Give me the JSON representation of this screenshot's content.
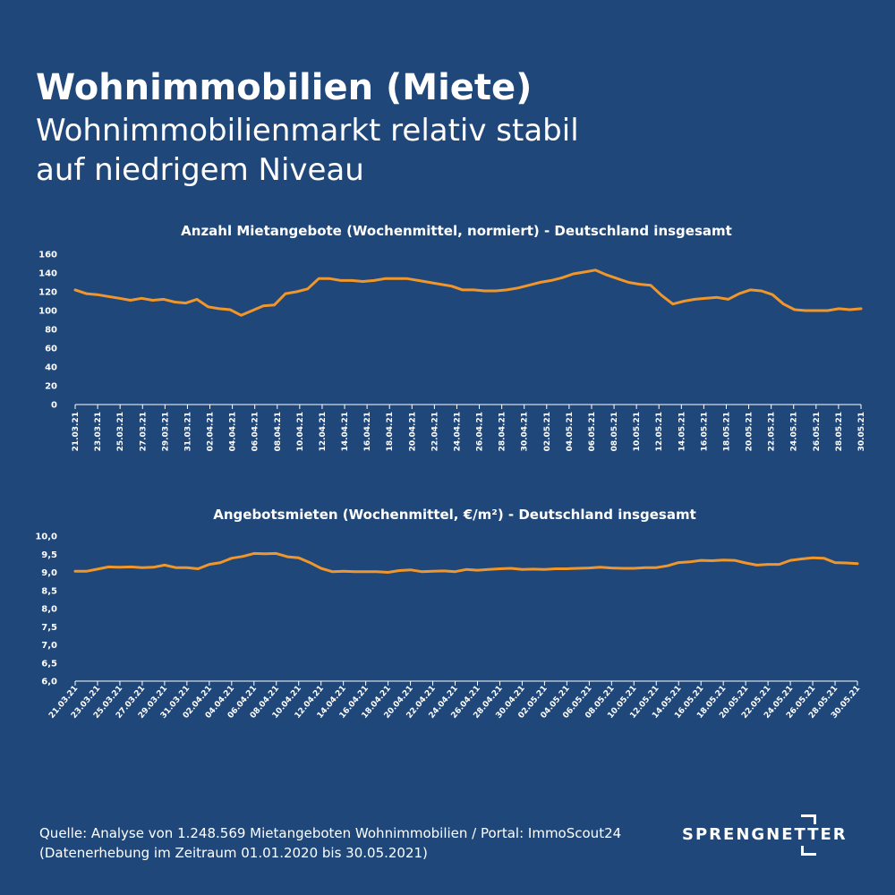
{
  "header": {
    "title": "Wohnimmobilien (Miete)",
    "subtitle_line1": "Wohnimmobilienmarkt relativ stabil",
    "subtitle_line2": "auf niedrigem Niveau"
  },
  "colors": {
    "background": "#1f477a",
    "line": "#f0962a",
    "text": "#ffffff"
  },
  "footer": {
    "source_line1": "Quelle: Analyse von 1.248.569 Mietangeboten Wohnimmobilien / Portal: ImmoScout24",
    "source_line2": "(Datenerhebung im Zeitraum 01.01.2020 bis  30.05.2021)",
    "logo_text": "SPRENGNETTER"
  },
  "chart_data": [
    {
      "type": "line",
      "title": "Anzahl Mietangebote (Wochenmittel, normiert) - Deutschland insgesamt",
      "xlabel": "",
      "ylabel": "",
      "ylim": [
        0,
        160
      ],
      "yticks": [
        "0",
        "20",
        "40",
        "60",
        "80",
        "100",
        "120",
        "140",
        "160"
      ],
      "grid": false,
      "x_tick_labels": [
        "21.03.21",
        "23.03.21",
        "25.03.21",
        "27.03.21",
        "29.03.21",
        "31.03.21",
        "02.04.21",
        "04.04.21",
        "06.04.21",
        "08.04.21",
        "10.04.21",
        "12.04.21",
        "14.04.21",
        "16.04.21",
        "18.04.21",
        "20.04.21",
        "22.04.21",
        "24.04.21",
        "26.04.21",
        "28.04.21",
        "30.04.21",
        "02.05.21",
        "04.05.21",
        "06.05.21",
        "08.05.21",
        "10.05.21",
        "12.05.21",
        "14.05.21",
        "16.05.21",
        "18.05.21",
        "20.05.21",
        "22.05.21",
        "24.05.21",
        "26.05.21",
        "28.05.21",
        "30.05.21"
      ],
      "values": [
        122,
        118,
        117,
        115,
        113,
        111,
        113,
        111,
        112,
        109,
        108,
        112,
        104,
        102,
        101,
        95,
        100,
        105,
        106,
        118,
        120,
        123,
        134,
        134,
        132,
        132,
        131,
        132,
        134,
        134,
        134,
        132,
        130,
        128,
        126,
        122,
        122,
        121,
        121,
        122,
        124,
        127,
        130,
        132,
        135,
        139,
        141,
        143,
        138,
        134,
        130,
        128,
        127,
        116,
        107,
        110,
        112,
        113,
        114,
        112,
        118,
        122,
        121,
        117,
        107,
        101,
        100,
        100,
        100,
        102,
        101,
        102
      ]
    },
    {
      "type": "line",
      "title": "Angebotsmieten (Wochenmittel, €/m²) - Deutschland insgesamt",
      "xlabel": "",
      "ylabel": "",
      "ylim": [
        6.0,
        10.0
      ],
      "yticks": [
        "6,0",
        "6,5",
        "7,0",
        "7,5",
        "8,0",
        "8,5",
        "9,0",
        "9,5",
        "10,0"
      ],
      "grid": false,
      "x_tick_labels": [
        "21.03.21",
        "23.03.21",
        "25.03.21",
        "27.03.21",
        "29.03.21",
        "31.03.21",
        "02.04.21",
        "04.04.21",
        "06.04.21",
        "08.04.21",
        "10.04.21",
        "12.04.21",
        "14.04.21",
        "16.04.21",
        "18.04.21",
        "20.04.21",
        "22.04.21",
        "24.04.21",
        "26.04.21",
        "28.04.21",
        "30.04.21",
        "02.05.21",
        "04.05.21",
        "06.05.21",
        "08.05.21",
        "10.05.21",
        "12.05.21",
        "14.05.21",
        "16.05.21",
        "18.05.21",
        "20.05.21",
        "22.05.21",
        "24.05.21",
        "26.05.21",
        "28.05.21",
        "30.05.21"
      ],
      "values": [
        9.03,
        9.03,
        9.09,
        9.15,
        9.14,
        9.15,
        9.13,
        9.14,
        9.2,
        9.13,
        9.13,
        9.1,
        9.22,
        9.27,
        9.39,
        9.44,
        9.52,
        9.51,
        9.52,
        9.43,
        9.4,
        9.27,
        9.11,
        9.02,
        9.03,
        9.02,
        9.02,
        9.02,
        9.0,
        9.05,
        9.07,
        9.02,
        9.03,
        9.04,
        9.02,
        9.08,
        9.06,
        9.08,
        9.1,
        9.11,
        9.08,
        9.09,
        9.08,
        9.1,
        9.1,
        9.11,
        9.12,
        9.14,
        9.12,
        9.11,
        9.11,
        9.13,
        9.13,
        9.18,
        9.27,
        9.29,
        9.33,
        9.32,
        9.34,
        9.33,
        9.26,
        9.2,
        9.22,
        9.22,
        9.33,
        9.37,
        9.4,
        9.39,
        9.27,
        9.26,
        9.24
      ]
    }
  ]
}
